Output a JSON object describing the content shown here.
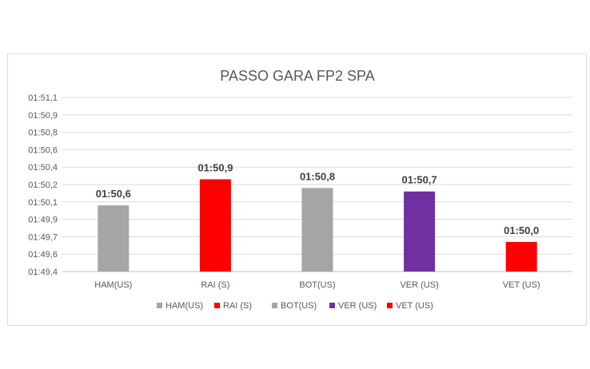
{
  "chart_data": {
    "type": "bar",
    "title": "PASSO GARA FP2 SPA",
    "categories": [
      "HAM(US)",
      "RAI (S)",
      "BOT(US)",
      "VER (US)",
      "VET (US)"
    ],
    "values": [
      1.9,
      2.65,
      2.4,
      2.3,
      0.85
    ],
    "data_labels": [
      "01:50,6",
      "01:50,9",
      "01:50,8",
      "01:50,7",
      "01:50,0"
    ],
    "colors": [
      "#a5a5a5",
      "#ff0000",
      "#a5a5a5",
      "#7030a0",
      "#ff0000"
    ],
    "y_tick_labels": [
      "01:49,4",
      "01:49,6",
      "01:49,7",
      "01:49,9",
      "01:50,1",
      "01:50,2",
      "01:50,4",
      "01:50,6",
      "01:50,8",
      "01:50,9",
      "01:51,1"
    ],
    "ylim": [
      0,
      5
    ],
    "xlabel": "",
    "ylabel": "",
    "grid": true,
    "legend_position": "bottom",
    "legend": [
      {
        "label": "HAM(US)",
        "color": "#a5a5a5"
      },
      {
        "label": "RAI (S)",
        "color": "#ff0000"
      },
      {
        "label": "BOT(US)",
        "color": "#a5a5a5"
      },
      {
        "label": "VER (US)",
        "color": "#7030a0"
      },
      {
        "label": "VET (US)",
        "color": "#ff0000"
      }
    ]
  }
}
